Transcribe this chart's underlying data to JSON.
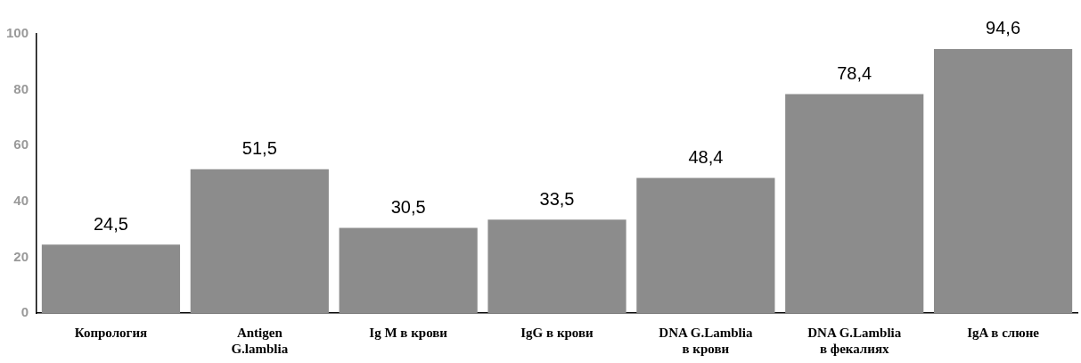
{
  "chart_data": {
    "type": "bar",
    "categories": [
      "Копрология",
      "Antigen G.lamblia",
      "Ig M в крови",
      "IgG в крови",
      "DNA G.Lamblia в крови",
      "DNA G.Lamblia в фекалиях",
      "IgA в слюне"
    ],
    "values": [
      24.5,
      51.5,
      30.5,
      33.5,
      48.4,
      78.4,
      94.6
    ],
    "value_labels": [
      "24,5",
      "51,5",
      "30,5",
      "33,5",
      "48,4",
      "78,4",
      "94,6"
    ],
    "color": "#8c8c8c",
    "ylim": [
      0,
      100
    ],
    "yticks": [
      0,
      20,
      40,
      60,
      80,
      100
    ],
    "grid": false,
    "legend": false
  }
}
